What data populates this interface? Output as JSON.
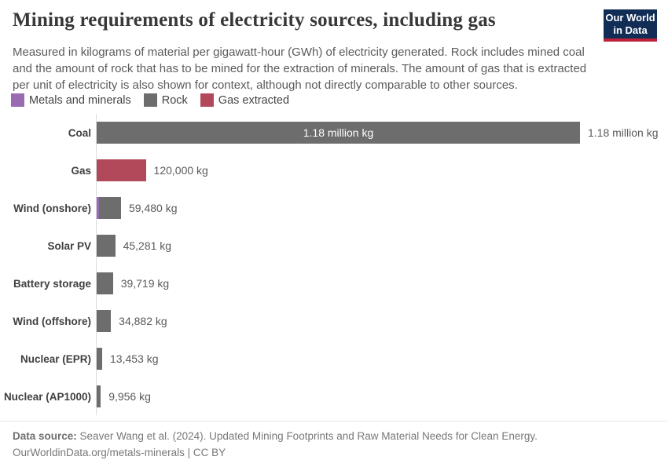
{
  "header": {
    "title": "Mining requirements of electricity sources, including gas",
    "subtitle_lines": [
      "Measured in kilograms of material per gigawatt-hour (GWh) of electricity generated. Rock includes mined coal",
      "and the amount of rock that has to be mined for the extraction of minerals. The amount of gas that is extracted",
      "per unit of electricity is also shown for context, although not directly comparable to other sources."
    ]
  },
  "logo": {
    "line1": "Our World",
    "line2": "in Data"
  },
  "legend": {
    "items": [
      {
        "label": "Metals and minerals",
        "series": "metals",
        "color": "#986bb2"
      },
      {
        "label": "Rock",
        "series": "rock",
        "color": "#6d6d6d"
      },
      {
        "label": "Gas extracted",
        "series": "gas",
        "color": "#b1495b"
      }
    ]
  },
  "colors": {
    "metals": "#986bb2",
    "rock": "#6d6d6d",
    "gas": "#b1495b",
    "axis": "#dddddd",
    "logo_bg": "#112d55",
    "logo_accent": "#be2239"
  },
  "chart_data": {
    "type": "bar",
    "orientation": "horizontal",
    "title": "Mining requirements of electricity sources, including gas",
    "unit": "kg of material per GWh of electricity",
    "xlim": [
      0,
      1180000
    ],
    "grid": false,
    "legend_position": "top",
    "series_names": [
      "Metals and minerals",
      "Rock",
      "Gas extracted"
    ],
    "categories": [
      "Coal",
      "Gas",
      "Wind (onshore)",
      "Solar PV",
      "Battery storage",
      "Wind (offshore)",
      "Nuclear (EPR)",
      "Nuclear (AP1000)"
    ],
    "rows": [
      {
        "label": "Coal",
        "total": 1180000,
        "value_label": "1.18 million kg",
        "inside_label": "1.18 million kg",
        "segments": [
          {
            "series": "rock",
            "value": 1180000
          }
        ]
      },
      {
        "label": "Gas",
        "total": 120000,
        "value_label": "120,000 kg",
        "segments": [
          {
            "series": "gas",
            "value": 120000
          }
        ]
      },
      {
        "label": "Wind (onshore)",
        "total": 59480,
        "value_label": "59,480 kg",
        "segments": [
          {
            "series": "metals",
            "value": 5480,
            "estimated": true
          },
          {
            "series": "rock",
            "value": 54000,
            "estimated": true
          }
        ]
      },
      {
        "label": "Solar PV",
        "total": 45281,
        "value_label": "45,281 kg",
        "segments": [
          {
            "series": "rock",
            "value": 45281
          }
        ]
      },
      {
        "label": "Battery storage",
        "total": 39719,
        "value_label": "39,719 kg",
        "segments": [
          {
            "series": "rock",
            "value": 39719
          }
        ]
      },
      {
        "label": "Wind (offshore)",
        "total": 34882,
        "value_label": "34,882 kg",
        "segments": [
          {
            "series": "rock",
            "value": 34882
          }
        ]
      },
      {
        "label": "Nuclear (EPR)",
        "total": 13453,
        "value_label": "13,453 kg",
        "segments": [
          {
            "series": "rock",
            "value": 13453
          }
        ]
      },
      {
        "label": "Nuclear (AP1000)",
        "total": 9956,
        "value_label": "9,956 kg",
        "segments": [
          {
            "series": "rock",
            "value": 9956
          }
        ]
      }
    ]
  },
  "footer": {
    "datasource_label": "Data source:",
    "datasource_text": "Seaver Wang et al. (2024). Updated Mining Footprints and Raw Material Needs for Clean Energy.",
    "url_line": "OurWorldinData.org/metals-minerals | CC BY"
  }
}
